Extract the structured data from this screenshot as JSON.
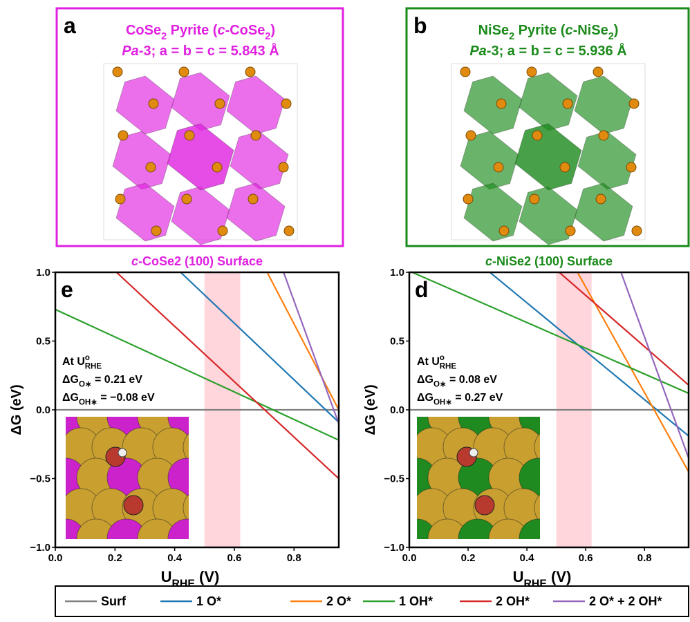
{
  "panels": [
    {
      "label": "a",
      "color": "#e020e0",
      "title": [
        {
          "text": "CoSe"
        },
        {
          "text": "2",
          "style": "sub"
        },
        {
          "text": " Pyrite ("
        },
        {
          "text": "c",
          "style": "italic"
        },
        {
          "text": "-CoSe"
        },
        {
          "text": "2",
          "style": "sub"
        },
        {
          "text": ")"
        }
      ],
      "subtitle": [
        {
          "text": "Pa",
          "style": "italic"
        },
        {
          "text": "-3; a = b = c = 5.843 Å"
        }
      ]
    },
    {
      "label": "b",
      "color": "#1a8a1a",
      "title": [
        {
          "text": "NiSe"
        },
        {
          "text": "2",
          "style": "sub"
        },
        {
          "text": " Pyrite ("
        },
        {
          "text": "c",
          "style": "italic"
        },
        {
          "text": "-NiSe"
        },
        {
          "text": "2",
          "style": "sub"
        },
        {
          "text": ")"
        }
      ],
      "subtitle": [
        {
          "text": "Pa",
          "style": "italic"
        },
        {
          "text": "-3; a = b = c = 5.936 Å"
        }
      ]
    }
  ],
  "chart_data": [
    {
      "type": "line",
      "label": "e",
      "title_color": "#e020e0",
      "inset_color": "#cc22cc",
      "title": [
        {
          "text": "c",
          "style": "italic"
        },
        {
          "text": "-CoSe2 (100) Surface"
        }
      ],
      "xlabel": [
        {
          "text": "U"
        },
        {
          "text": "RHE",
          "style": "sub"
        },
        {
          "text": " (V)"
        }
      ],
      "ylabel": "ΔG (eV)",
      "xlim": [
        0,
        0.95
      ],
      "ylim": [
        -1,
        1
      ],
      "xticks": [
        {
          "value": 0,
          "label": "0.0"
        },
        {
          "value": 0.2,
          "label": "0.2"
        },
        {
          "value": 0.4,
          "label": "0.4"
        },
        {
          "value": 0.6,
          "label": "0.6"
        },
        {
          "value": 0.8,
          "label": "0.8"
        }
      ],
      "yticks": [
        {
          "value": -1,
          "label": "−1.0"
        },
        {
          "value": -0.5,
          "label": "−0.5"
        },
        {
          "value": 0,
          "label": "0.0"
        },
        {
          "value": 0.5,
          "label": "0.5"
        },
        {
          "value": 1,
          "label": "1.0"
        }
      ],
      "band": [
        0.5,
        0.62
      ],
      "band_color": "#ffd6dc",
      "annotations": [
        [
          {
            "text": "At U"
          },
          {
            "text": "o",
            "style": "sup"
          },
          {
            "text": "RHE",
            "style": "sub"
          }
        ],
        [
          {
            "text": "ΔG"
          },
          {
            "text": "O∗",
            "style": "sub"
          },
          {
            "text": " = 0.21 eV"
          }
        ],
        [
          {
            "text": "ΔG"
          },
          {
            "text": "OH∗",
            "style": "sub"
          },
          {
            "text": " = −0.08 eV"
          }
        ]
      ],
      "series": [
        {
          "name": "Surf",
          "color": "#7f7f7f",
          "x": [
            0,
            0.95
          ],
          "values": [
            0,
            0
          ]
        },
        {
          "name": "1 O*",
          "color": "#1f77b4",
          "x": [
            0.42,
            0.95
          ],
          "values": [
            1,
            -0.09
          ]
        },
        {
          "name": "2 O*",
          "color": "#ff7f0e",
          "x": [
            0.71,
            0.95
          ],
          "values": [
            1,
            0
          ]
        },
        {
          "name": "1 OH*",
          "color": "#2ca02c",
          "x": [
            0,
            0.95
          ],
          "values": [
            0.73,
            -0.22
          ]
        },
        {
          "name": "2 OH*",
          "color": "#d62728",
          "x": [
            0.205,
            0.95
          ],
          "values": [
            1,
            -0.5
          ]
        },
        {
          "name": "2 O* + 2 OH*",
          "color": "#9467bd",
          "x": [
            0.765,
            0.95
          ],
          "values": [
            1,
            -0.1
          ]
        }
      ]
    },
    {
      "type": "line",
      "label": "d",
      "title_color": "#1a8a1a",
      "inset_color": "#1f8a1f",
      "title": [
        {
          "text": "c",
          "style": "italic"
        },
        {
          "text": "-NiSe2 (100) Surface"
        }
      ],
      "xlabel": [
        {
          "text": "U"
        },
        {
          "text": "RHE",
          "style": "sub"
        },
        {
          "text": " (V)"
        }
      ],
      "ylabel": "ΔG (eV)",
      "xlim": [
        0,
        0.95
      ],
      "ylim": [
        -1,
        1
      ],
      "xticks": [
        {
          "value": 0,
          "label": "0.0"
        },
        {
          "value": 0.2,
          "label": "0.2"
        },
        {
          "value": 0.4,
          "label": "0.4"
        },
        {
          "value": 0.6,
          "label": "0.6"
        },
        {
          "value": 0.8,
          "label": "0.8"
        }
      ],
      "yticks": [
        {
          "value": -1,
          "label": "−1.0"
        },
        {
          "value": -0.5,
          "label": "−0.5"
        },
        {
          "value": 0,
          "label": "0.0"
        },
        {
          "value": 0.5,
          "label": "0.5"
        },
        {
          "value": 1,
          "label": "1.0"
        }
      ],
      "band": [
        0.5,
        0.62
      ],
      "band_color": "#ffd6dc",
      "annotations": [
        [
          {
            "text": "At U"
          },
          {
            "text": "o",
            "style": "sup"
          },
          {
            "text": "RHE",
            "style": "sub"
          }
        ],
        [
          {
            "text": "ΔG"
          },
          {
            "text": "O∗",
            "style": "sub"
          },
          {
            "text": " = 0.08 eV"
          }
        ],
        [
          {
            "text": "ΔG"
          },
          {
            "text": "OH∗",
            "style": "sub"
          },
          {
            "text": " = 0.27 eV"
          }
        ]
      ],
      "series": [
        {
          "name": "Surf",
          "color": "#7f7f7f",
          "x": [
            0,
            0.95
          ],
          "values": [
            0,
            0
          ]
        },
        {
          "name": "1 O*",
          "color": "#1f77b4",
          "x": [
            0.274,
            0.95
          ],
          "values": [
            1,
            -0.19
          ]
        },
        {
          "name": "2 O*",
          "color": "#ff7f0e",
          "x": [
            0.572,
            0.95
          ],
          "values": [
            1,
            -0.45
          ]
        },
        {
          "name": "1 OH*",
          "color": "#2ca02c",
          "x": [
            0.01,
            0.95
          ],
          "values": [
            1,
            0.12
          ]
        },
        {
          "name": "2 OH*",
          "color": "#d62728",
          "x": [
            0.51,
            0.95
          ],
          "values": [
            1,
            0.18
          ]
        },
        {
          "name": "2 O* + 2 OH*",
          "color": "#9467bd",
          "x": [
            0.72,
            0.95
          ],
          "values": [
            1,
            -0.35
          ]
        }
      ]
    }
  ]
}
